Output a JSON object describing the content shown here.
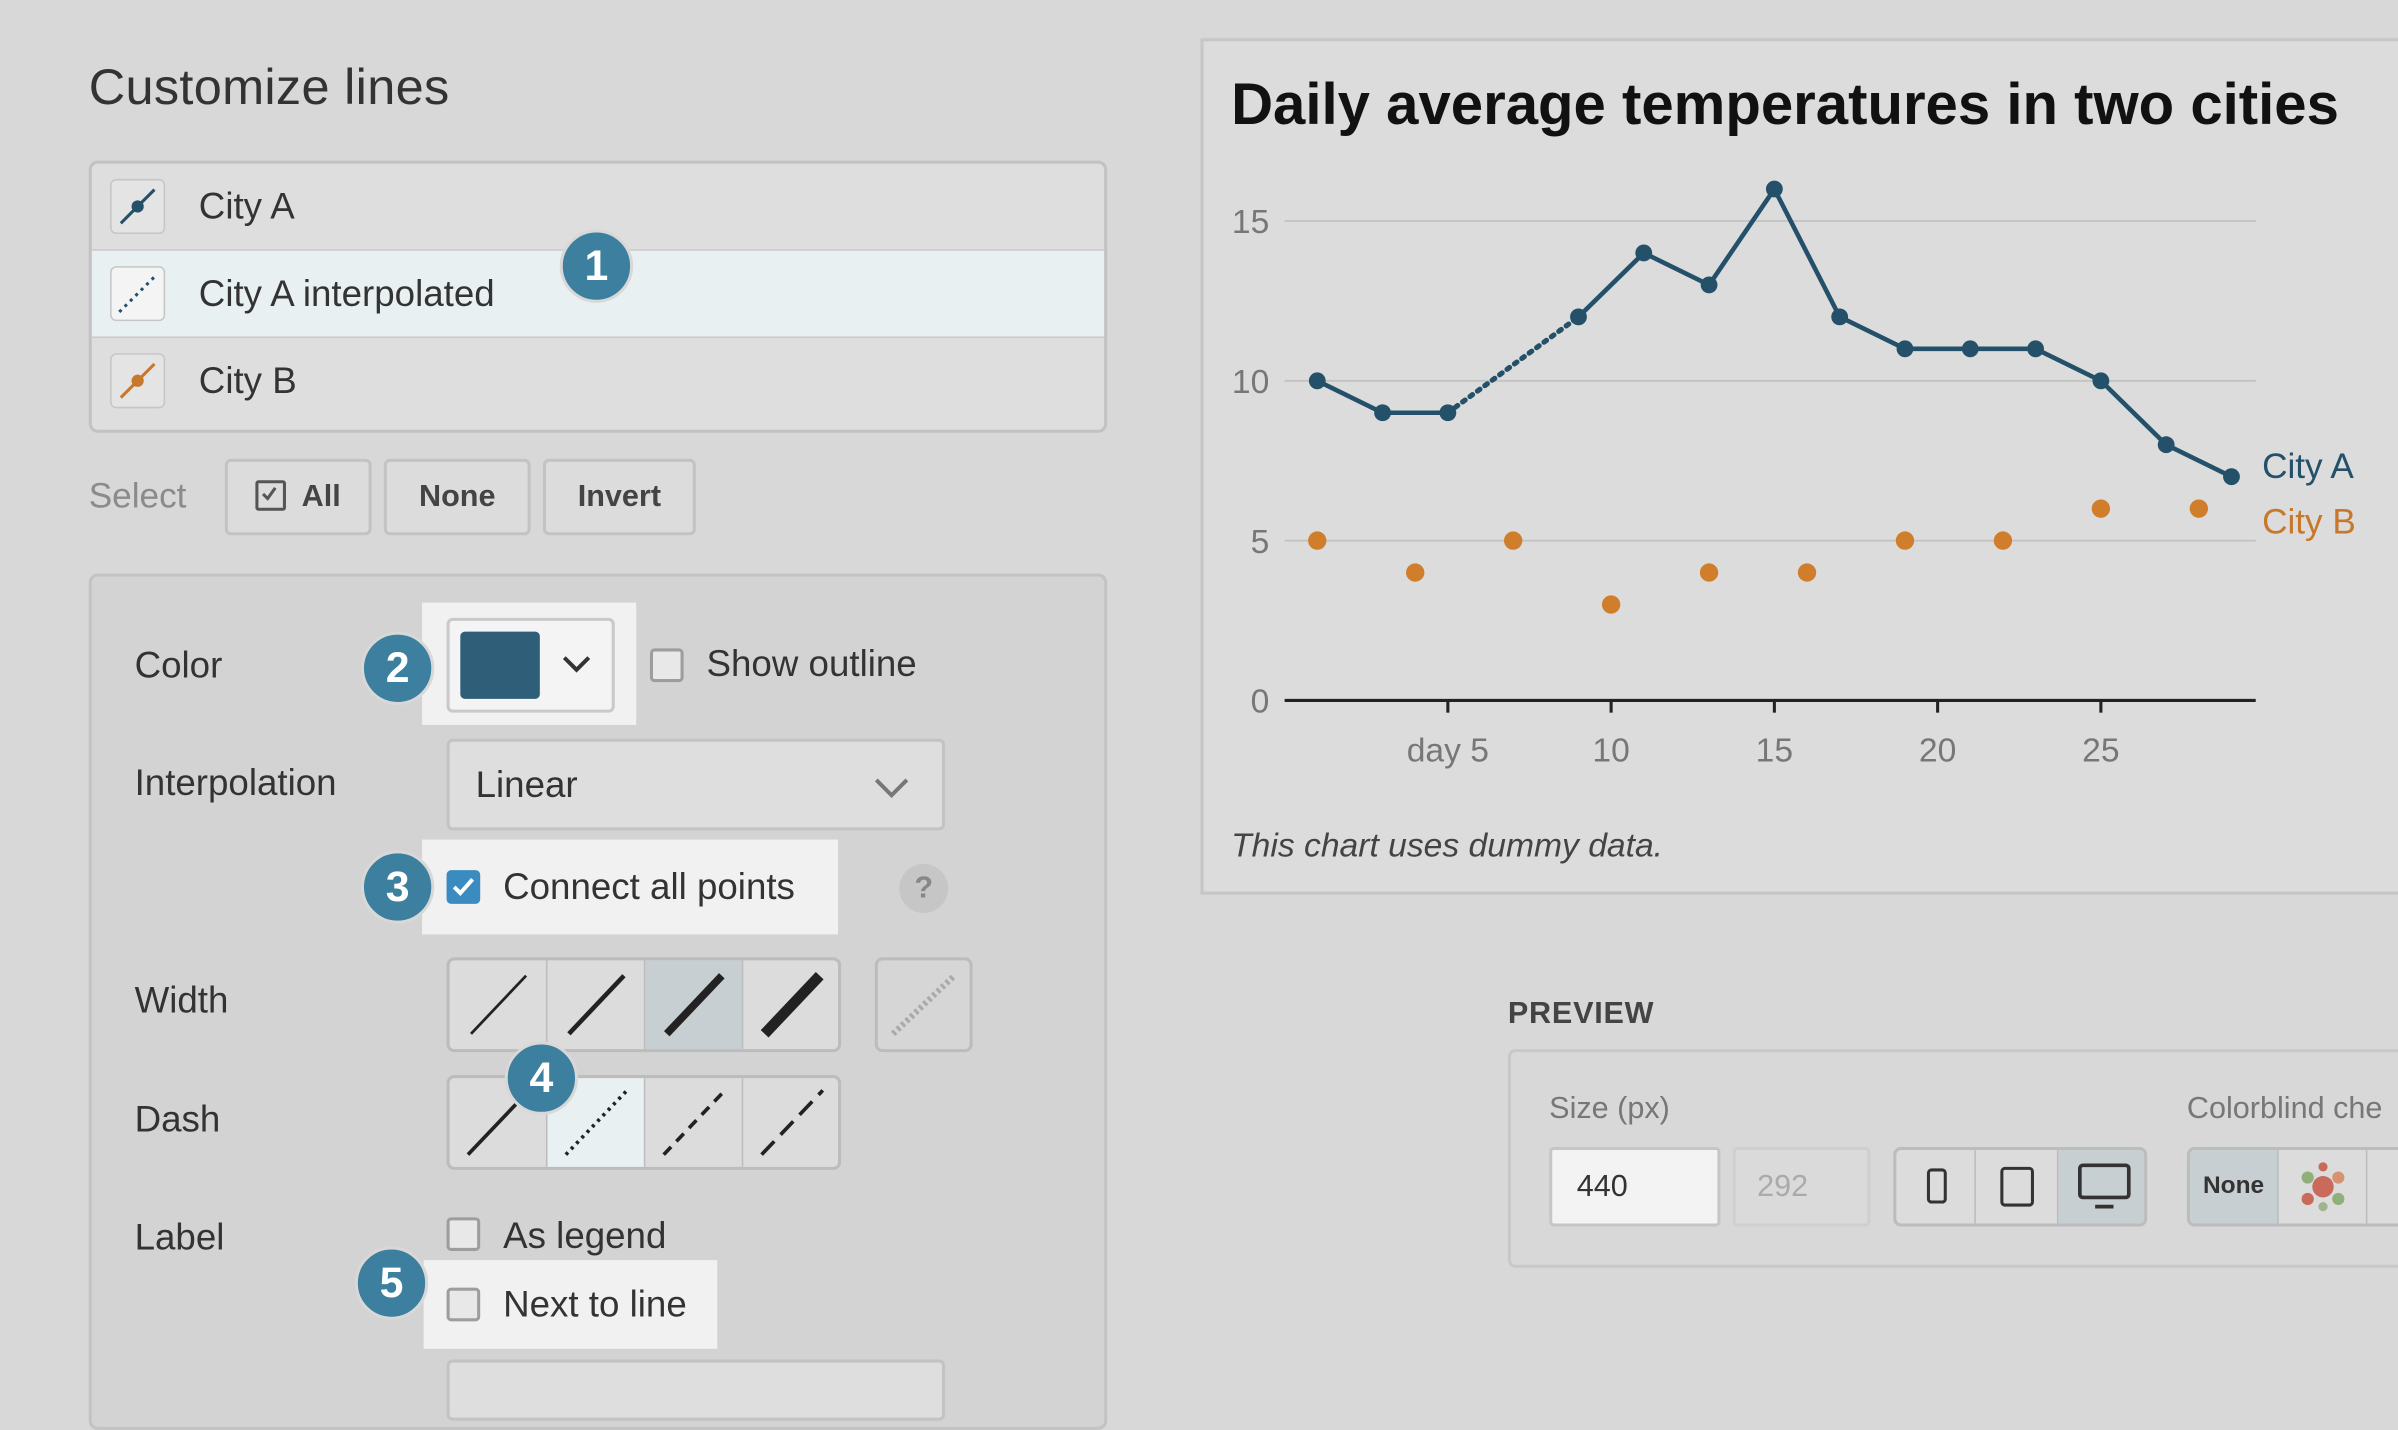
{
  "header": {
    "title": "Customize lines"
  },
  "lines": [
    {
      "label": "City A",
      "icon": "line-marker-icon",
      "color": "#24506a"
    },
    {
      "label": "City A interpolated",
      "icon": "dotted-line-icon",
      "color": "#24506a"
    },
    {
      "label": "City B",
      "icon": "line-marker-icon",
      "color": "#c8782b"
    }
  ],
  "select": {
    "label": "Select",
    "all": "All",
    "none": "None",
    "invert": "Invert"
  },
  "badges": {
    "b1": "1",
    "b2": "2",
    "b3": "3",
    "b4": "4",
    "b5": "5"
  },
  "settings": {
    "color_label": "Color",
    "color_value": "#2e5e78",
    "show_outline": "Show outline",
    "interpolation_label": "Interpolation",
    "interpolation_value": "Linear",
    "connect_all_points": "Connect all points",
    "help": "?",
    "width_label": "Width",
    "dash_label": "Dash",
    "label_label": "Label",
    "as_legend": "As legend",
    "next_to_line": "Next to line"
  },
  "chart": {
    "title": "Daily average temperatures in two cities",
    "note": "This chart uses dummy data."
  },
  "chart_data": {
    "type": "line",
    "title": "Daily average temperatures in two cities",
    "x_ticks": [
      "day 5",
      "10",
      "15",
      "20",
      "25"
    ],
    "y_ticks": [
      "0",
      "5",
      "10",
      "15"
    ],
    "ylim": [
      0,
      16
    ],
    "xlim": [
      0,
      30
    ],
    "series": [
      {
        "name": "City A",
        "color": "#24506a",
        "style": "line-markers",
        "x": [
          1,
          3,
          5,
          9,
          11,
          13,
          15,
          17,
          19,
          21,
          23,
          25,
          27,
          29
        ],
        "y": [
          10,
          9,
          9,
          12,
          14,
          13,
          16,
          12,
          11,
          11,
          11,
          10,
          8,
          7
        ]
      },
      {
        "name": "City A interpolated",
        "color": "#24506a",
        "style": "dotted",
        "x": [
          5,
          9
        ],
        "y": [
          9,
          12
        ]
      },
      {
        "name": "City B",
        "color": "#d07d2c",
        "style": "points",
        "x": [
          1,
          4,
          7,
          10,
          13,
          16,
          19,
          22,
          25,
          28
        ],
        "y": [
          5,
          4,
          5,
          3,
          4,
          4,
          5,
          5,
          6,
          6
        ]
      }
    ]
  },
  "preview": {
    "title": "PREVIEW",
    "size_label": "Size (px)",
    "width_value": "440",
    "height_value": "292",
    "colorblind_label": "Colorblind che",
    "cb_none": "None"
  }
}
